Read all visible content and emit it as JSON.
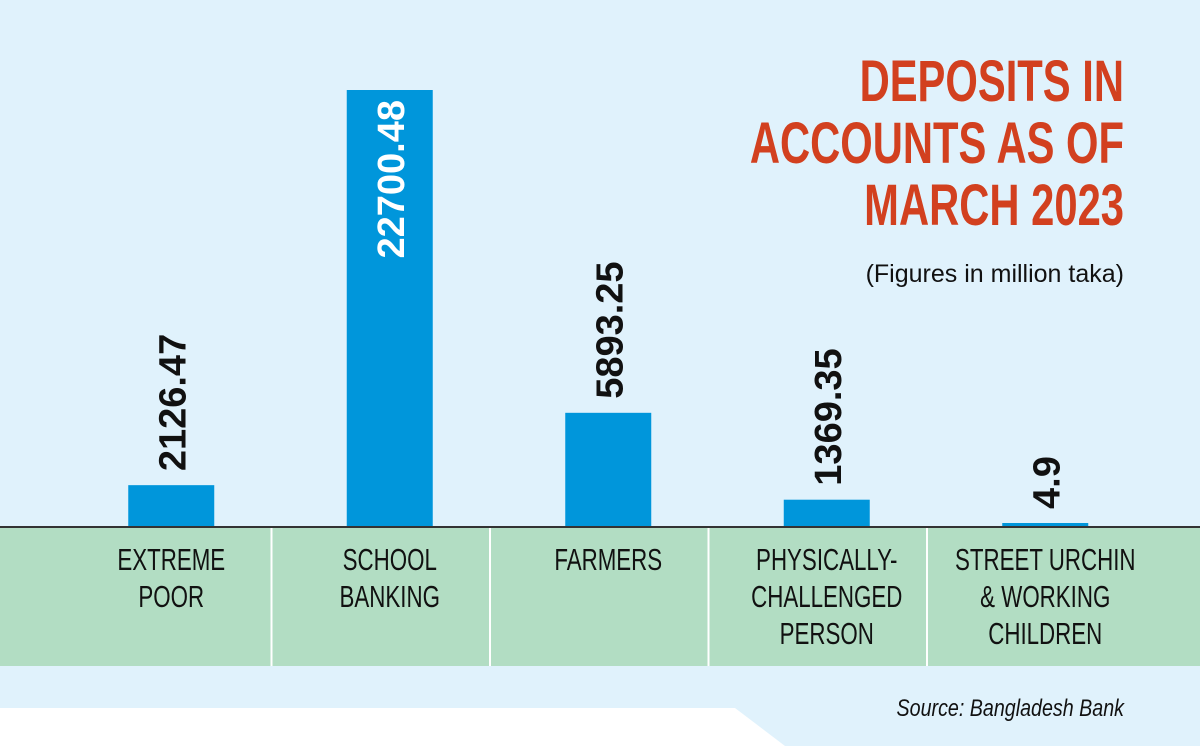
{
  "chart_data": {
    "type": "bar",
    "title_lines": [
      "DEPOSITS IN",
      "ACCOUNTS AS OF",
      "MARCH 2023"
    ],
    "subtitle": "(Figures in million taka)",
    "source": "Source: Bangladesh Bank",
    "categories": [
      [
        "EXTREME",
        "POOR"
      ],
      [
        "SCHOOL",
        "BANKING"
      ],
      [
        "FARMERS"
      ],
      [
        "PHYSICALLY-",
        "CHALLENGED",
        "PERSON"
      ],
      [
        "STREET URCHIN",
        "& WORKING",
        "CHILDREN"
      ]
    ],
    "values": [
      2126.47,
      22700.48,
      5893.25,
      1369.35,
      4.9
    ],
    "labels": [
      "2126.47",
      "22700.48",
      "5893.25",
      "1369.35",
      "4.9"
    ],
    "ylim": [
      0,
      22700.48
    ],
    "colors": {
      "bar": "#0096db",
      "title": "#d2401f",
      "band": "#b2ddc3",
      "background": "#e0f2fc"
    }
  }
}
